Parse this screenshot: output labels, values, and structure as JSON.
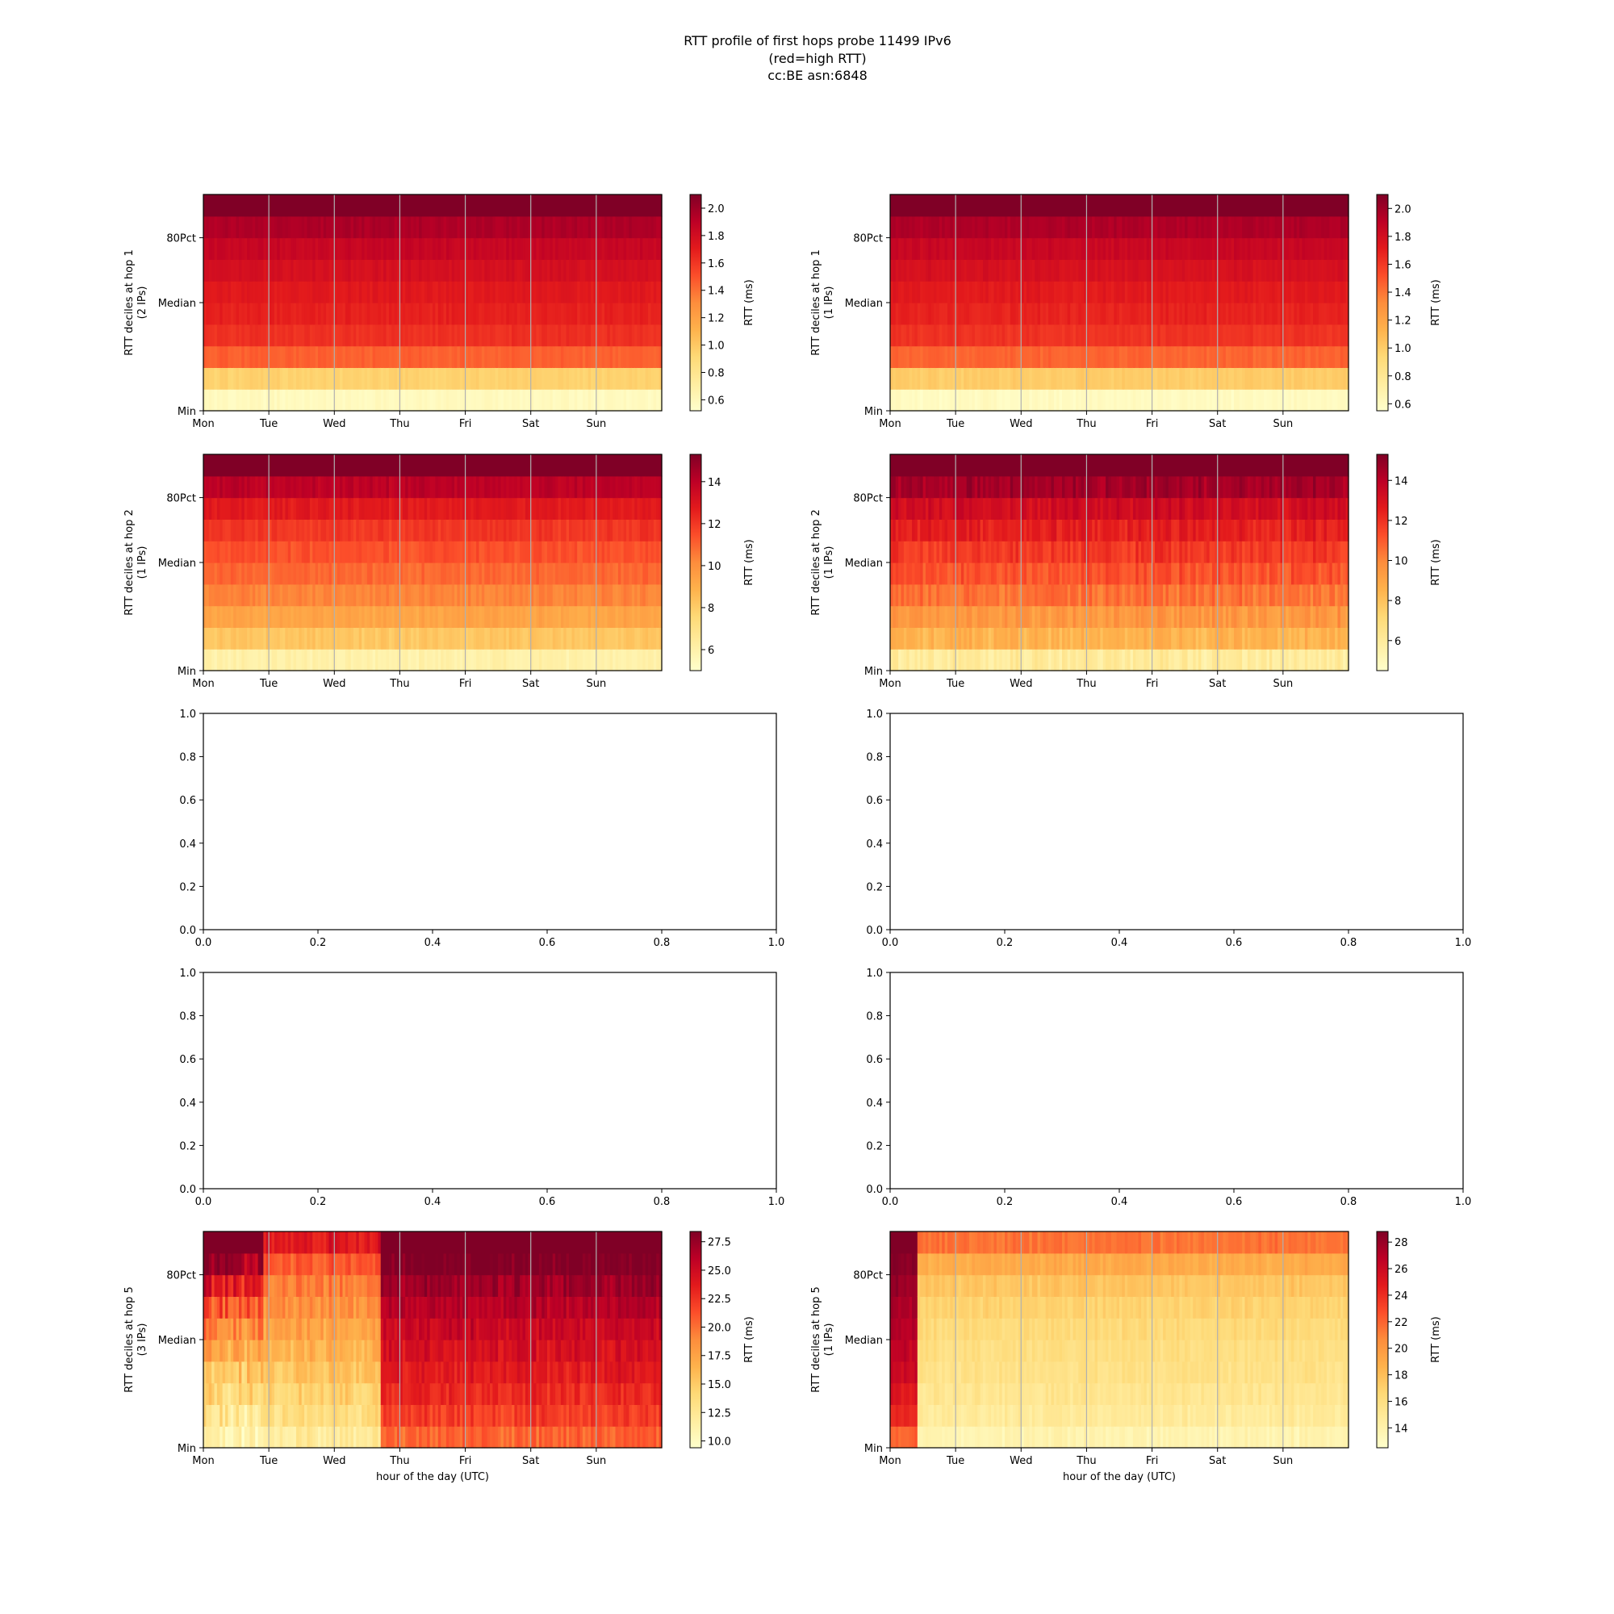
{
  "title": [
    "RTT profile of first hops probe 11499 IPv6",
    "(red=high RTT)",
    "cc:BE asn:6848"
  ],
  "colors": {
    "colormap": "YlOrRd",
    "stops": [
      "#ffffcc",
      "#ffeda0",
      "#fed976",
      "#feb24c",
      "#fd8d3c",
      "#fc4e2a",
      "#e31a1c",
      "#bd0026",
      "#800026"
    ],
    "gridline": "#b0b0b0",
    "axis": "#000000"
  },
  "chart_data": [
    {
      "id": "hop1-left",
      "type": "heatmap",
      "ylabel": [
        "RTT deciles at hop 1",
        "(2 IPs)"
      ],
      "x_ticklabels": [
        "Mon",
        "Tue",
        "Wed",
        "Thu",
        "Fri",
        "Sat",
        "Sun"
      ],
      "y_ticklabels": [
        "Min",
        "Median",
        "80Pct"
      ],
      "xlabel": "",
      "colorbar": {
        "label": "RTT (ms)",
        "range": [
          0.52,
          2.1
        ],
        "ticks": [
          "0.6",
          "0.8",
          "1.0",
          "1.2",
          "1.4",
          "1.6",
          "1.8",
          "2.0"
        ]
      },
      "deciles_typical": [
        0.58,
        0.95,
        1.45,
        1.62,
        1.68,
        1.72,
        1.78,
        1.85,
        1.95,
        2.5
      ],
      "noise": 0.05,
      "bins": 168
    },
    {
      "id": "hop1-right",
      "type": "heatmap",
      "ylabel": [
        "RTT deciles at hop 1",
        "(1 IPs)"
      ],
      "x_ticklabels": [
        "Mon",
        "Tue",
        "Wed",
        "Thu",
        "Fri",
        "Sat",
        "Sun"
      ],
      "y_ticklabels": [
        "Min",
        "Median",
        "80Pct"
      ],
      "xlabel": "",
      "colorbar": {
        "label": "RTT (ms)",
        "range": [
          0.55,
          2.1
        ],
        "ticks": [
          "0.6",
          "0.8",
          "1.0",
          "1.2",
          "1.4",
          "1.6",
          "1.8",
          "2.0"
        ]
      },
      "deciles_typical": [
        0.6,
        1.0,
        1.45,
        1.62,
        1.68,
        1.72,
        1.78,
        1.85,
        1.95,
        2.5
      ],
      "noise": 0.05,
      "bins": 168
    },
    {
      "id": "hop2-left",
      "type": "heatmap",
      "ylabel": [
        "RTT deciles at hop 2",
        "(1 IPs)"
      ],
      "x_ticklabels": [
        "Mon",
        "Tue",
        "Wed",
        "Thu",
        "Fri",
        "Sat",
        "Sun"
      ],
      "y_ticklabels": [
        "Min",
        "Median",
        "80Pct"
      ],
      "xlabel": "",
      "colorbar": {
        "label": "RTT (ms)",
        "range": [
          5,
          15.3
        ],
        "ticks": [
          "6",
          "8",
          "10",
          "12",
          "14"
        ]
      },
      "deciles_typical": [
        6.0,
        8.2,
        9.3,
        10.3,
        10.9,
        11.4,
        12.0,
        12.8,
        14.0,
        17.0
      ],
      "noise": 0.5,
      "bins": 168
    },
    {
      "id": "hop2-right",
      "type": "heatmap",
      "ylabel": [
        "RTT deciles at hop 2",
        "(1 IPs)"
      ],
      "x_ticklabels": [
        "Mon",
        "Tue",
        "Wed",
        "Thu",
        "Fri",
        "Sat",
        "Sun"
      ],
      "y_ticklabels": [
        "Min",
        "Median",
        "80Pct"
      ],
      "xlabel": "",
      "colorbar": {
        "label": "RTT (ms)",
        "range": [
          4.5,
          15.3
        ],
        "ticks": [
          "6",
          "8",
          "10",
          "12",
          "14"
        ]
      },
      "deciles_typical": [
        6.0,
        8.5,
        9.5,
        10.5,
        11.2,
        11.8,
        12.5,
        13.3,
        14.5,
        17.0
      ],
      "noise": 0.9,
      "bins": 168
    },
    {
      "id": "empty-row3-left",
      "type": "empty",
      "x_ticklabels": [
        "0.0",
        "0.2",
        "0.4",
        "0.6",
        "0.8",
        "1.0"
      ],
      "y_ticklabels": [
        "0.0",
        "0.2",
        "0.4",
        "0.6",
        "0.8",
        "1.0"
      ],
      "xlim": [
        0,
        1
      ],
      "ylim": [
        0,
        1
      ]
    },
    {
      "id": "empty-row3-right",
      "type": "empty",
      "x_ticklabels": [
        "0.0",
        "0.2",
        "0.4",
        "0.6",
        "0.8",
        "1.0"
      ],
      "y_ticklabels": [
        "0.0",
        "0.2",
        "0.4",
        "0.6",
        "0.8",
        "1.0"
      ],
      "xlim": [
        0,
        1
      ],
      "ylim": [
        0,
        1
      ]
    },
    {
      "id": "empty-row4-left",
      "type": "empty",
      "x_ticklabels": [
        "0.0",
        "0.2",
        "0.4",
        "0.6",
        "0.8",
        "1.0"
      ],
      "y_ticklabels": [
        "0.0",
        "0.2",
        "0.4",
        "0.6",
        "0.8",
        "1.0"
      ],
      "xlim": [
        0,
        1
      ],
      "ylim": [
        0,
        1
      ]
    },
    {
      "id": "empty-row4-right",
      "type": "empty",
      "x_ticklabels": [
        "0.0",
        "0.2",
        "0.4",
        "0.6",
        "0.8",
        "1.0"
      ],
      "y_ticklabels": [
        "0.0",
        "0.2",
        "0.4",
        "0.6",
        "0.8",
        "1.0"
      ],
      "xlim": [
        0,
        1
      ],
      "ylim": [
        0,
        1
      ]
    },
    {
      "id": "hop5-left",
      "type": "heatmap",
      "ylabel": [
        "RTT deciles at hop 5",
        "(3 IPs)"
      ],
      "x_ticklabels": [
        "Mon",
        "Tue",
        "Wed",
        "Thu",
        "Fri",
        "Sat",
        "Sun"
      ],
      "y_ticklabels": [
        "Min",
        "Median",
        "80Pct"
      ],
      "xlabel": "hour of the day (UTC)",
      "colorbar": {
        "label": "RTT (ms)",
        "range": [
          9.4,
          28.4
        ],
        "ticks": [
          "10.0",
          "12.5",
          "15.0",
          "17.5",
          "20.0",
          "22.5",
          "25.0",
          "27.5"
        ]
      },
      "deciles_typical": [
        20.5,
        22.0,
        23.0,
        23.8,
        24.5,
        25.3,
        26.2,
        27.2,
        28.5,
        32.0
      ],
      "noise": 1.8,
      "bins": 168,
      "low_periods": [
        {
          "from_day": 0.0,
          "to_day": 0.9,
          "deciles": [
            11,
            12.5,
            14,
            15.5,
            17,
            19,
            21,
            24,
            27,
            31
          ],
          "noise": 3.5
        },
        {
          "from_day": 0.9,
          "to_day": 2.7,
          "deciles": [
            12,
            13.5,
            14.5,
            15.5,
            16.5,
            17.5,
            18.5,
            19.5,
            21,
            24
          ],
          "noise": 2.0
        }
      ]
    },
    {
      "id": "hop5-right",
      "type": "heatmap",
      "ylabel": [
        "RTT deciles at hop 5",
        "(1 IPs)"
      ],
      "x_ticklabels": [
        "Mon",
        "Tue",
        "Wed",
        "Thu",
        "Fri",
        "Sat",
        "Sun"
      ],
      "y_ticklabels": [
        "Min",
        "Median",
        "80Pct"
      ],
      "xlabel": "hour of the day (UTC)",
      "colorbar": {
        "label": "RTT (ms)",
        "range": [
          12.5,
          28.8
        ],
        "ticks": [
          "14",
          "16",
          "18",
          "20",
          "22",
          "24",
          "26",
          "28"
        ]
      },
      "deciles_typical": [
        13.8,
        14.8,
        15.3,
        15.7,
        16.0,
        16.4,
        16.9,
        17.6,
        19.0,
        21.5
      ],
      "noise": 0.9,
      "bins": 168,
      "high_periods": [
        {
          "from_day": 0.0,
          "to_day": 0.38,
          "deciles": [
            22,
            24,
            25,
            26,
            26.5,
            27,
            27.5,
            28,
            28.5,
            30
          ],
          "noise": 1.0
        }
      ]
    }
  ]
}
